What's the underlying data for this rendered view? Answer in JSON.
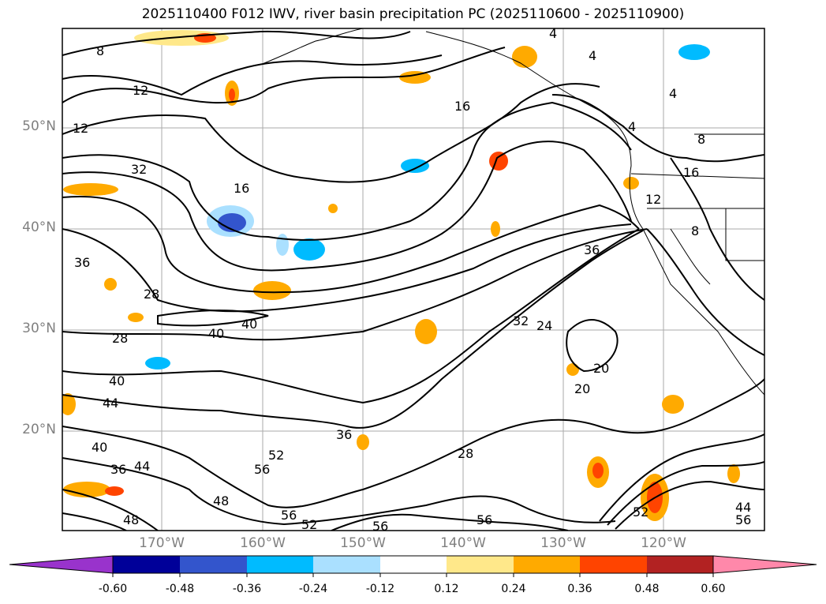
{
  "title": "2025110400 F012 IWV, river basin precipitation PC (2025110600 - 2025110900)",
  "lat_ticks": [
    "50°N",
    "40°N",
    "30°N",
    "20°N"
  ],
  "lon_ticks": [
    "170°W",
    "160°W",
    "150°W",
    "140°W",
    "130°W",
    "120°W"
  ],
  "colorbar": {
    "ticks": [
      "-0.60",
      "-0.48",
      "-0.36",
      "-0.24",
      "-0.12",
      "0.12",
      "0.24",
      "0.36",
      "0.48",
      "0.60"
    ],
    "colors": [
      "#9933cc",
      "#000099",
      "#3355cc",
      "#00bbff",
      "#aae0ff",
      "#ffffff",
      "#ffe88a",
      "#ffaa00",
      "#ff4400",
      "#b22222",
      "#ff88aa"
    ]
  },
  "contour_labels": [
    "8",
    "12",
    "12",
    "16",
    "16",
    "32",
    "36",
    "28",
    "40",
    "40",
    "28",
    "40",
    "44",
    "40",
    "36",
    "44",
    "48",
    "36",
    "56",
    "52",
    "56",
    "52",
    "56",
    "28",
    "32",
    "24",
    "36",
    "20",
    "20",
    "12",
    "16",
    "8",
    "8",
    "4",
    "4",
    "4",
    "4",
    "44",
    "56",
    "56",
    "52",
    "48"
  ],
  "features": [
    "IWV contours",
    "precipitation PC shading",
    "coastlines",
    "state borders"
  ]
}
